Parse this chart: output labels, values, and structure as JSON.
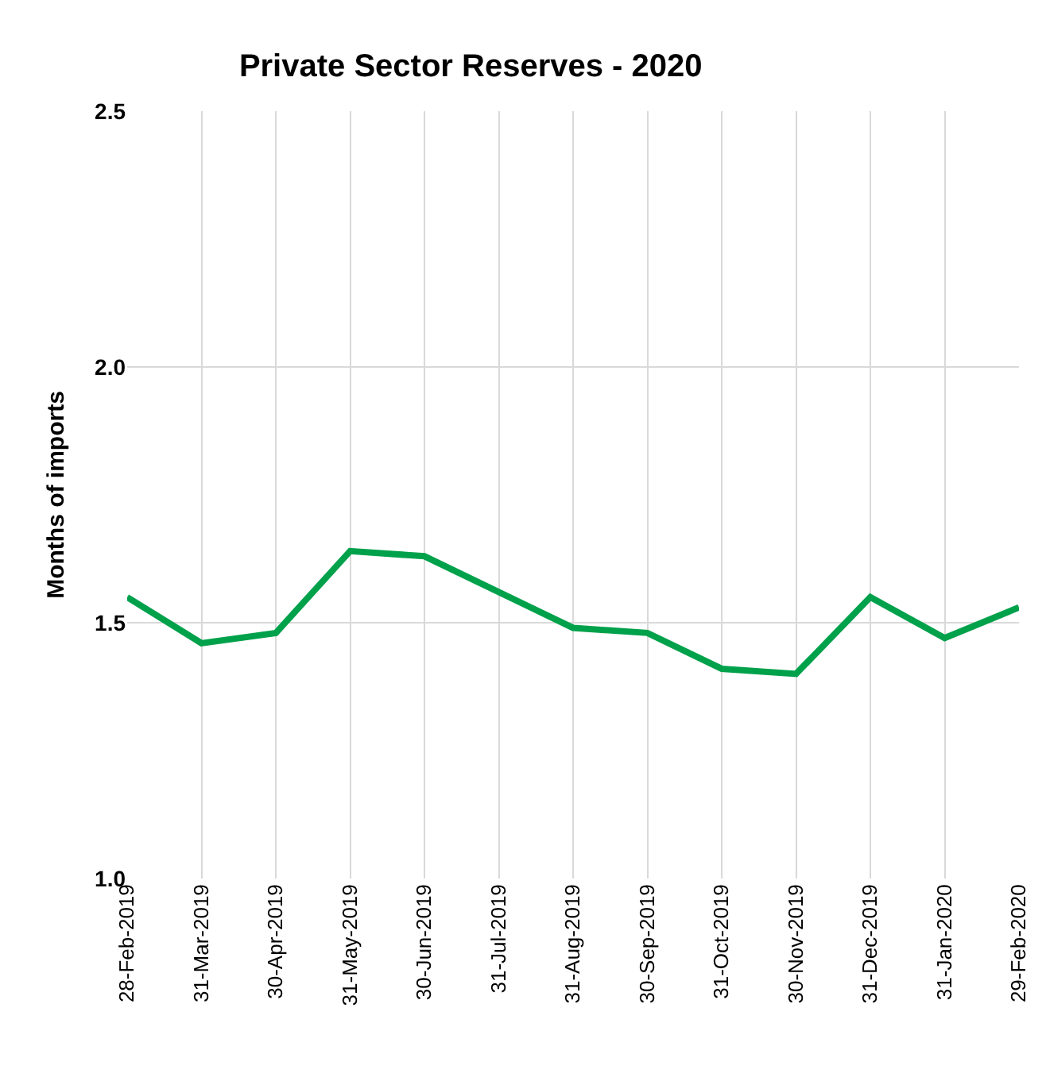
{
  "chart_data": {
    "type": "line",
    "title": "Private Sector Reserves - 2020",
    "ylabel": "Months of imports",
    "categories": [
      "28-Feb-2019",
      "31-Mar-2019",
      "30-Apr-2019",
      "31-May-2019",
      "30-Jun-2019",
      "31-Jul-2019",
      "31-Aug-2019",
      "30-Sep-2019",
      "31-Oct-2019",
      "30-Nov-2019",
      "31-Dec-2019",
      "31-Jan-2020",
      "29-Feb-2020"
    ],
    "series": [
      {
        "color": "#00a14b",
        "values": [
          1.55,
          1.46,
          1.48,
          1.64,
          1.63,
          1.56,
          1.49,
          1.48,
          1.41,
          1.4,
          1.55,
          1.47,
          1.53
        ]
      }
    ],
    "ylim": [
      1.0,
      2.5
    ],
    "yticks": [
      {
        "value": 1.0,
        "label": "1.0"
      },
      {
        "value": 1.5,
        "label": "1.5"
      },
      {
        "value": 2.0,
        "label": "2.0"
      },
      {
        "value": 2.5,
        "label": "2.5"
      }
    ],
    "grid": true,
    "legend": false,
    "marker": "none",
    "line_style": "solid"
  }
}
